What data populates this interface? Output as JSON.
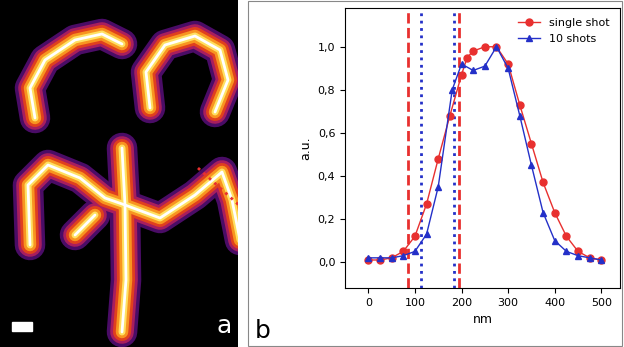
{
  "image_panel": {
    "label": "a"
  },
  "chart_data": {
    "type": "line",
    "panel_label": "b",
    "x_label": "nm",
    "y_label": "a.u.",
    "xlim": [
      -50,
      540
    ],
    "ylim": [
      -0.12,
      1.18
    ],
    "xticks": [
      0,
      100,
      200,
      300,
      400,
      500
    ],
    "yticks": [
      {
        "value": 0.0,
        "label": "0,0"
      },
      {
        "value": 0.2,
        "label": "0,2"
      },
      {
        "value": 0.4,
        "label": "0,4"
      },
      {
        "value": 0.6,
        "label": "0,6"
      },
      {
        "value": 0.8,
        "label": "0,8"
      },
      {
        "value": 1.0,
        "label": "1,0"
      }
    ],
    "grid": false,
    "legend": "upper right",
    "series": [
      {
        "name": "single shot",
        "color": "#e8302f",
        "marker": "circle",
        "line_style": "solid",
        "x": [
          0,
          25,
          50,
          75,
          100,
          125,
          150,
          175,
          200,
          212,
          225,
          250,
          275,
          300,
          325,
          350,
          375,
          400,
          425,
          450,
          475,
          500
        ],
        "values": [
          0.01,
          0.01,
          0.02,
          0.05,
          0.12,
          0.27,
          0.48,
          0.68,
          0.87,
          0.95,
          0.98,
          1.0,
          1.0,
          0.92,
          0.73,
          0.55,
          0.37,
          0.23,
          0.12,
          0.05,
          0.02,
          0.01
        ]
      },
      {
        "name": "10 shots",
        "color": "#2430c8",
        "marker": "triangle",
        "line_style": "solid",
        "x": [
          0,
          25,
          50,
          75,
          100,
          125,
          150,
          180,
          200,
          225,
          250,
          275,
          300,
          325,
          350,
          375,
          400,
          425,
          450,
          475,
          500
        ],
        "values": [
          0.02,
          0.02,
          0.02,
          0.03,
          0.05,
          0.13,
          0.35,
          0.8,
          0.92,
          0.89,
          0.91,
          1.0,
          0.9,
          0.68,
          0.45,
          0.23,
          0.1,
          0.05,
          0.03,
          0.02,
          0.01
        ]
      }
    ],
    "vertical_lines": [
      {
        "x": 85,
        "color": "#e8302f",
        "line_style": "dashed"
      },
      {
        "x": 195,
        "color": "#e8302f",
        "line_style": "dashed"
      },
      {
        "x": 112,
        "color": "#2430c8",
        "line_style": "dotted"
      },
      {
        "x": 183,
        "color": "#2430c8",
        "line_style": "dotted"
      }
    ]
  }
}
